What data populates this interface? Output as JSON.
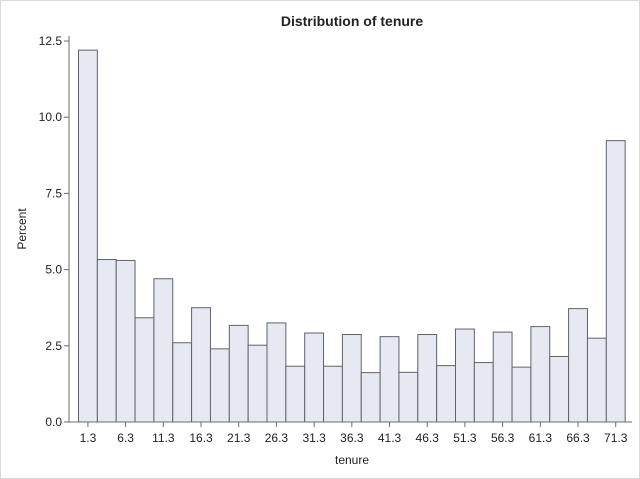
{
  "chart_data": {
    "type": "bar",
    "title": "Distribution of tenure",
    "xlabel": "tenure",
    "ylabel": "Percent",
    "bin_width": 2.5,
    "first_bin_midpoint": 1.3,
    "x_tick_labels": [
      "1.3",
      "6.3",
      "11.3",
      "16.3",
      "21.3",
      "26.3",
      "31.3",
      "36.3",
      "41.3",
      "46.3",
      "51.3",
      "56.3",
      "61.3",
      "66.3",
      "71.3"
    ],
    "y_tick_labels": [
      "0.0",
      "2.5",
      "5.0",
      "7.5",
      "10.0",
      "12.5"
    ],
    "ylim": [
      0,
      13.0
    ],
    "y_ticks": [
      0,
      2.5,
      5.0,
      7.5,
      10.0,
      12.5
    ],
    "categories": [
      "1.3",
      "3.8",
      "6.3",
      "8.8",
      "11.3",
      "13.8",
      "16.3",
      "18.8",
      "21.3",
      "23.8",
      "26.3",
      "28.8",
      "31.3",
      "33.8",
      "36.3",
      "38.8",
      "41.3",
      "43.8",
      "46.3",
      "48.8",
      "51.3",
      "53.8",
      "56.3",
      "58.8",
      "61.3",
      "63.8",
      "66.3",
      "68.8",
      "71.3"
    ],
    "values": [
      12.2,
      5.33,
      5.3,
      3.42,
      4.7,
      2.6,
      3.75,
      2.4,
      3.17,
      2.52,
      3.25,
      1.83,
      2.92,
      1.83,
      2.87,
      1.62,
      2.8,
      1.63,
      2.87,
      1.85,
      3.05,
      1.95,
      2.95,
      1.8,
      3.13,
      2.15,
      3.72,
      2.75,
      9.23
    ],
    "colors": {
      "bar_fill": "#e6e9f1",
      "bar_stroke": "#5d636d",
      "axis": "#6c6c6c",
      "frame": "#d9d9d9"
    }
  }
}
